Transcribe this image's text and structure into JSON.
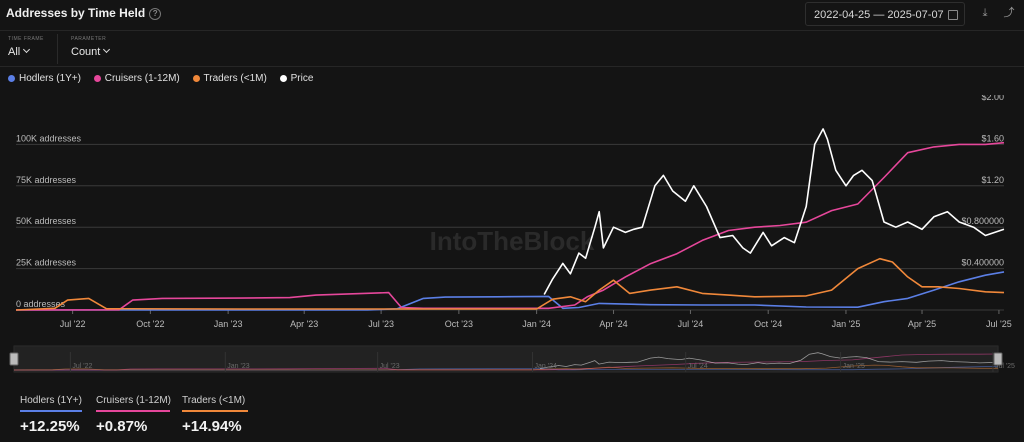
{
  "header": {
    "title": "Addresses by Time Held",
    "date_start": "2022-04-25",
    "date_sep": "—",
    "date_end": "2025-07-07"
  },
  "filters": {
    "timeframe_label": "TIME FRAME",
    "timeframe_value": "All",
    "parameter_label": "PARAMETER",
    "parameter_value": "Count"
  },
  "legend": [
    {
      "name": "Hodlers (1Y+)",
      "color": "#5b7fe6"
    },
    {
      "name": "Cruisers (1-12M)",
      "color": "#e6479b"
    },
    {
      "name": "Traders (<1M)",
      "color": "#f0883a"
    },
    {
      "name": "Price",
      "color": "#ffffff"
    }
  ],
  "watermark": "IntoTheBlock",
  "summary": [
    {
      "name": "Hodlers (1Y+)",
      "value": "+12.25%",
      "color": "#5b7fe6"
    },
    {
      "name": "Cruisers (1-12M)",
      "value": "+0.87%",
      "color": "#e6479b"
    },
    {
      "name": "Traders (<1M)",
      "value": "+14.94%",
      "color": "#f0883a"
    }
  ],
  "chart_data": {
    "type": "line",
    "x_ticks": [
      "Jul '22",
      "Oct '22",
      "Jan '23",
      "Apr '23",
      "Jul '23",
      "Oct '23",
      "Jan '24",
      "Apr '24",
      "Jul '24",
      "Oct '24",
      "Jan '25",
      "Apr '25",
      "Jul '25"
    ],
    "navigator_ticks": [
      "Jul '22",
      "Jan '23",
      "Jul '23",
      "Jan '24",
      "Jul '24",
      "Jan '25",
      "Jul '25"
    ],
    "y_left": {
      "ticks": [
        0,
        25000,
        50000,
        75000,
        100000
      ],
      "labels": [
        "0 addresses",
        "25K addresses",
        "50K addresses",
        "75K addresses",
        "100K addresses"
      ],
      "range": [
        0,
        125000
      ]
    },
    "y_right": {
      "ticks": [
        0.4,
        0.8,
        1.2,
        1.6,
        2.0
      ],
      "labels": [
        "$0.400000",
        "$0.800000",
        "$1.20",
        "$1.60",
        "$2.00"
      ],
      "range": [
        0,
        2.0
      ]
    },
    "x_range": [
      "2022-04-25",
      "2025-07-07"
    ],
    "grid": true,
    "legend_position": "top-left",
    "series": [
      {
        "name": "Hodlers (1Y+)",
        "axis": "left",
        "color": "#5b7fe6",
        "points": [
          [
            "2022-04-25",
            0
          ],
          [
            "2023-06-15",
            0
          ],
          [
            "2023-07-20",
            700
          ],
          [
            "2023-08-20",
            7000
          ],
          [
            "2023-09-15",
            7800
          ],
          [
            "2023-11-15",
            8000
          ],
          [
            "2024-01-15",
            8200
          ],
          [
            "2024-02-01",
            1000
          ],
          [
            "2024-02-20",
            1500
          ],
          [
            "2024-03-15",
            4000
          ],
          [
            "2024-05-15",
            3200
          ],
          [
            "2024-07-15",
            3000
          ],
          [
            "2024-09-15",
            3000
          ],
          [
            "2024-11-15",
            1800
          ],
          [
            "2025-01-15",
            1700
          ],
          [
            "2025-02-15",
            5000
          ],
          [
            "2025-03-15",
            7000
          ],
          [
            "2025-04-15",
            12000
          ],
          [
            "2025-05-15",
            17000
          ],
          [
            "2025-06-15",
            21000
          ],
          [
            "2025-07-07",
            23000
          ]
        ]
      },
      {
        "name": "Cruisers (1-12M)",
        "axis": "left",
        "color": "#e6479b",
        "points": [
          [
            "2022-04-25",
            0
          ],
          [
            "2022-08-25",
            100
          ],
          [
            "2022-09-10",
            6000
          ],
          [
            "2022-10-15",
            7000
          ],
          [
            "2023-01-15",
            7200
          ],
          [
            "2023-03-15",
            7500
          ],
          [
            "2023-04-15",
            9000
          ],
          [
            "2023-07-10",
            10500
          ],
          [
            "2023-07-25",
            1500
          ],
          [
            "2023-08-20",
            1000
          ],
          [
            "2024-01-15",
            1000
          ],
          [
            "2024-02-15",
            3000
          ],
          [
            "2024-03-01",
            8000
          ],
          [
            "2024-03-20",
            12000
          ],
          [
            "2024-04-15",
            20000
          ],
          [
            "2024-05-15",
            28000
          ],
          [
            "2024-06-15",
            34000
          ],
          [
            "2024-07-15",
            42000
          ],
          [
            "2024-08-15",
            48000
          ],
          [
            "2024-09-15",
            50000
          ],
          [
            "2024-10-15",
            51000
          ],
          [
            "2024-11-15",
            53000
          ],
          [
            "2024-12-15",
            60000
          ],
          [
            "2025-01-15",
            64000
          ],
          [
            "2025-02-15",
            80000
          ],
          [
            "2025-03-15",
            95000
          ],
          [
            "2025-04-15",
            98500
          ],
          [
            "2025-05-15",
            100000
          ],
          [
            "2025-06-15",
            100000
          ],
          [
            "2025-07-07",
            101000
          ]
        ]
      },
      {
        "name": "Traders (<1M)",
        "axis": "left",
        "color": "#f0883a",
        "points": [
          [
            "2022-04-25",
            0
          ],
          [
            "2022-06-10",
            1000
          ],
          [
            "2022-06-25",
            6000
          ],
          [
            "2022-07-20",
            7000
          ],
          [
            "2022-08-10",
            800
          ],
          [
            "2023-01-15",
            600
          ],
          [
            "2023-07-15",
            600
          ],
          [
            "2024-01-01",
            600
          ],
          [
            "2024-01-20",
            6500
          ],
          [
            "2024-02-10",
            8000
          ],
          [
            "2024-02-28",
            5000
          ],
          [
            "2024-03-15",
            12000
          ],
          [
            "2024-04-01",
            18000
          ],
          [
            "2024-04-20",
            10000
          ],
          [
            "2024-05-15",
            12000
          ],
          [
            "2024-06-15",
            14000
          ],
          [
            "2024-07-15",
            10000
          ],
          [
            "2024-08-15",
            9000
          ],
          [
            "2024-09-15",
            8000
          ],
          [
            "2024-10-15",
            8200
          ],
          [
            "2024-11-15",
            8500
          ],
          [
            "2024-12-15",
            12000
          ],
          [
            "2025-01-15",
            25000
          ],
          [
            "2025-02-10",
            31000
          ],
          [
            "2025-02-25",
            29000
          ],
          [
            "2025-03-15",
            20000
          ],
          [
            "2025-04-01",
            14000
          ],
          [
            "2025-04-20",
            14000
          ],
          [
            "2025-05-15",
            13000
          ],
          [
            "2025-06-15",
            11000
          ],
          [
            "2025-07-07",
            10500
          ]
        ]
      },
      {
        "name": "Price",
        "axis": "right",
        "color": "#ffffff",
        "points": [
          [
            "2024-01-10",
            0.15
          ],
          [
            "2024-01-20",
            0.3
          ],
          [
            "2024-02-01",
            0.45
          ],
          [
            "2024-02-10",
            0.35
          ],
          [
            "2024-02-20",
            0.55
          ],
          [
            "2024-02-28",
            0.5
          ],
          [
            "2024-03-10",
            0.8
          ],
          [
            "2024-03-15",
            0.95
          ],
          [
            "2024-03-20",
            0.6
          ],
          [
            "2024-04-01",
            0.8
          ],
          [
            "2024-04-15",
            0.75
          ],
          [
            "2024-04-25",
            0.78
          ],
          [
            "2024-05-05",
            0.8
          ],
          [
            "2024-05-20",
            1.2
          ],
          [
            "2024-05-30",
            1.3
          ],
          [
            "2024-06-10",
            1.15
          ],
          [
            "2024-06-25",
            1.05
          ],
          [
            "2024-07-05",
            1.2
          ],
          [
            "2024-07-20",
            1.0
          ],
          [
            "2024-08-05",
            0.7
          ],
          [
            "2024-08-20",
            0.72
          ],
          [
            "2024-09-01",
            0.6
          ],
          [
            "2024-09-10",
            0.55
          ],
          [
            "2024-09-25",
            0.75
          ],
          [
            "2024-10-05",
            0.62
          ],
          [
            "2024-10-20",
            0.7
          ],
          [
            "2024-11-01",
            0.65
          ],
          [
            "2024-11-15",
            1.0
          ],
          [
            "2024-11-25",
            1.6
          ],
          [
            "2024-12-05",
            1.75
          ],
          [
            "2024-12-10",
            1.65
          ],
          [
            "2024-12-20",
            1.35
          ],
          [
            "2025-01-01",
            1.2
          ],
          [
            "2025-01-10",
            1.3
          ],
          [
            "2025-01-20",
            1.35
          ],
          [
            "2025-02-01",
            1.25
          ],
          [
            "2025-02-15",
            0.85
          ],
          [
            "2025-03-01",
            0.8
          ],
          [
            "2025-03-15",
            0.85
          ],
          [
            "2025-04-01",
            0.78
          ],
          [
            "2025-04-15",
            0.9
          ],
          [
            "2025-05-01",
            0.95
          ],
          [
            "2025-05-15",
            0.85
          ],
          [
            "2025-06-01",
            0.8
          ],
          [
            "2025-06-15",
            0.72
          ],
          [
            "2025-07-07",
            0.78
          ]
        ]
      }
    ]
  }
}
